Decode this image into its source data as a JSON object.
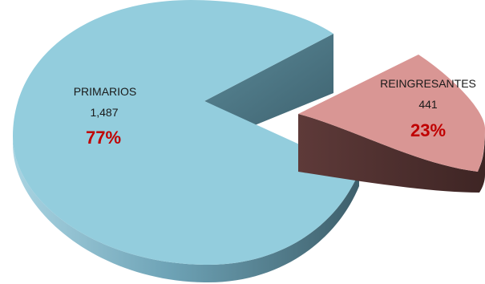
{
  "chart_data": {
    "type": "pie",
    "title": "",
    "slices": [
      {
        "label": "PRIMARIOS",
        "value": 1487,
        "value_text": "1,487",
        "percent_text": "77%",
        "color": "#93cddd",
        "percent_color": "#c00000",
        "exploded": false
      },
      {
        "label": "REINGRESANTES",
        "value": 441,
        "value_text": "441",
        "percent_text": "23%",
        "color": "#d99694",
        "percent_color": "#c00000",
        "exploded": true
      }
    ],
    "style": "3d-exploded"
  }
}
